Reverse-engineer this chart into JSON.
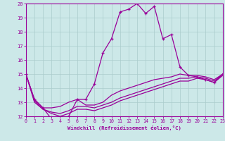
{
  "xlabel": "Windchill (Refroidissement éolien,°C)",
  "xlim": [
    0,
    23
  ],
  "ylim": [
    12,
    20
  ],
  "yticks": [
    12,
    13,
    14,
    15,
    16,
    17,
    18,
    19,
    20
  ],
  "xticks": [
    0,
    1,
    2,
    3,
    4,
    5,
    6,
    7,
    8,
    9,
    10,
    11,
    12,
    13,
    14,
    15,
    16,
    17,
    18,
    19,
    20,
    21,
    22,
    23
  ],
  "line_color": "#990099",
  "bg_color": "#cce8e8",
  "grid_color": "#aacccc",
  "main_series_x": [
    0,
    1,
    2,
    3,
    4,
    5,
    6,
    7,
    8,
    9,
    10,
    11,
    12,
    13,
    14,
    15,
    16,
    17,
    18,
    19,
    20,
    21,
    22,
    23
  ],
  "main_series_y": [
    15.0,
    13.2,
    12.6,
    11.8,
    11.8,
    12.0,
    13.2,
    13.2,
    14.3,
    16.5,
    17.5,
    19.4,
    19.6,
    20.0,
    19.3,
    19.8,
    17.5,
    17.8,
    15.5,
    14.9,
    14.8,
    14.6,
    14.4,
    15.0
  ],
  "line2_x": [
    0,
    1,
    2,
    3,
    4,
    5,
    6,
    7,
    8,
    9,
    10,
    11,
    12,
    13,
    14,
    15,
    16,
    17,
    18,
    19,
    20,
    21,
    22,
    23
  ],
  "line2_y": [
    15.0,
    13.2,
    12.6,
    12.6,
    12.7,
    13.0,
    13.2,
    12.8,
    12.8,
    13.0,
    13.5,
    13.8,
    14.0,
    14.2,
    14.4,
    14.6,
    14.7,
    14.8,
    15.0,
    14.9,
    14.9,
    14.8,
    14.6,
    15.0
  ],
  "line3_x": [
    0,
    1,
    2,
    3,
    4,
    5,
    6,
    7,
    8,
    9,
    10,
    11,
    12,
    13,
    14,
    15,
    16,
    17,
    18,
    19,
    20,
    21,
    22,
    23
  ],
  "line3_y": [
    15.0,
    13.1,
    12.5,
    12.3,
    12.2,
    12.4,
    12.7,
    12.7,
    12.6,
    12.8,
    13.0,
    13.3,
    13.5,
    13.7,
    13.9,
    14.1,
    14.3,
    14.5,
    14.7,
    14.7,
    14.8,
    14.7,
    14.5,
    15.0
  ],
  "line4_x": [
    0,
    1,
    2,
    3,
    4,
    5,
    6,
    7,
    8,
    9,
    10,
    11,
    12,
    13,
    14,
    15,
    16,
    17,
    18,
    19,
    20,
    21,
    22,
    23
  ],
  "line4_y": [
    15.0,
    13.0,
    12.5,
    12.2,
    12.0,
    12.2,
    12.5,
    12.5,
    12.4,
    12.6,
    12.8,
    13.1,
    13.3,
    13.5,
    13.7,
    13.9,
    14.1,
    14.3,
    14.5,
    14.5,
    14.7,
    14.6,
    14.4,
    14.9
  ]
}
